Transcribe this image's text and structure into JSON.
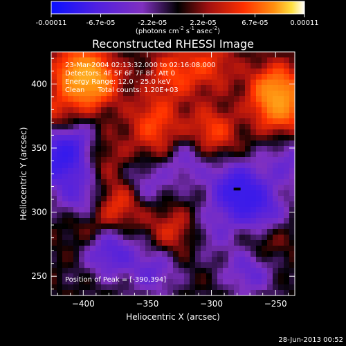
{
  "colorbar": {
    "tick_labels": [
      "-0.00011",
      "-6.7e-05",
      "-2.2e-05",
      "2.2e-05",
      "6.7e-05",
      "0.00011"
    ],
    "tick_values": [
      -0.00011,
      -6.7e-05,
      -2.2e-05,
      2.2e-05,
      6.7e-05,
      0.00011
    ],
    "range": [
      -0.00011,
      0.00011
    ],
    "unit_parts": [
      "(photons cm",
      "-2",
      " s",
      "-1",
      " asec",
      "-2",
      ")"
    ]
  },
  "chart_data": {
    "type": "heatmap",
    "title": "Reconstructed RHESSI Image",
    "xlabel": "Heliocentric X (arcsec)",
    "ylabel": "Heliocentric Y (arcsec)",
    "xlim": [
      -425,
      -235
    ],
    "ylim": [
      235,
      425
    ],
    "xticks": [
      -400,
      -350,
      -300,
      -250
    ],
    "yticks": [
      250,
      300,
      350,
      400
    ],
    "xtick_labels": [
      "−400",
      "−350",
      "−300",
      "−250"
    ],
    "ytick_labels": [
      "250",
      "300",
      "350",
      "400"
    ],
    "colormap": "blue-purple-red-yellow-white",
    "peak_position": [
      -390,
      394
    ],
    "blobs": [
      {
        "x": -393,
        "y": 402,
        "w": 1.0
      },
      {
        "x": -405,
        "y": 410,
        "w": 0.7
      },
      {
        "x": -330,
        "y": 408,
        "w": 0.55
      },
      {
        "x": -300,
        "y": 415,
        "w": 0.45
      },
      {
        "x": -250,
        "y": 395,
        "w": 0.95
      },
      {
        "x": -245,
        "y": 378,
        "w": 0.6
      },
      {
        "x": -300,
        "y": 362,
        "w": 0.6
      },
      {
        "x": -345,
        "y": 372,
        "w": 0.5
      },
      {
        "x": -420,
        "y": 375,
        "w": 0.45
      },
      {
        "x": -385,
        "y": 345,
        "w": 0.3
      },
      {
        "x": -372,
        "y": 308,
        "w": 0.6
      },
      {
        "x": -395,
        "y": 290,
        "w": 0.35
      },
      {
        "x": -330,
        "y": 285,
        "w": 0.45
      },
      {
        "x": -260,
        "y": 278,
        "w": 0.35
      },
      {
        "x": -340,
        "y": 350,
        "w": 0.3
      },
      {
        "x": -408,
        "y": 355,
        "w": -0.6
      },
      {
        "x": -420,
        "y": 340,
        "w": -0.9
      },
      {
        "x": -280,
        "y": 318,
        "w": -1.0
      },
      {
        "x": -262,
        "y": 300,
        "w": -0.7
      },
      {
        "x": -270,
        "y": 255,
        "w": -0.55
      },
      {
        "x": -380,
        "y": 270,
        "w": -0.7
      },
      {
        "x": -400,
        "y": 310,
        "w": -0.6
      },
      {
        "x": -352,
        "y": 322,
        "w": -0.45
      },
      {
        "x": -320,
        "y": 342,
        "w": -0.5
      },
      {
        "x": -345,
        "y": 255,
        "w": -0.5
      },
      {
        "x": -300,
        "y": 285,
        "w": -0.35
      },
      {
        "x": -240,
        "y": 340,
        "w": -0.45
      }
    ]
  },
  "annotations": {
    "time_range": "23-Mar-2004 02:13:32.000 to 02:16:08.000",
    "detectors": "Detectors: 4F 5F 6F 7F 8F, Att 0",
    "energy_range": "Energy Range: 12.0 - 25.0 keV",
    "clean": "Clean      Total counts: 1.20E+03",
    "peak_position": "Position of Peak = [-390,394]"
  },
  "footer": {
    "date": "28-Jun-2013 00:52"
  }
}
